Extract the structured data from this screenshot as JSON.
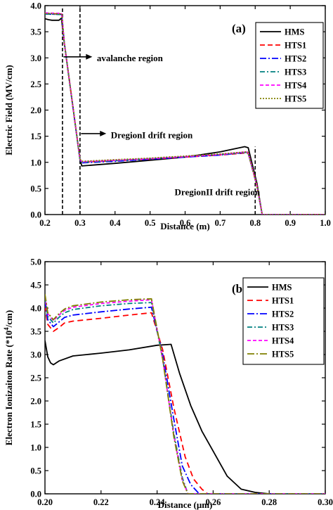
{
  "chart_data": [
    {
      "type": "line",
      "panel_label": "(a)",
      "xlabel": "Distance (m)",
      "ylabel": "Electric Field (MV/cm)",
      "xlim": [
        0.2,
        1.0
      ],
      "ylim": [
        0.0,
        4.0
      ],
      "xticks": [
        0.2,
        0.3,
        0.4,
        0.5,
        0.6,
        0.7,
        0.8,
        0.9,
        1.0
      ],
      "xtick_labels": [
        "0.2",
        "0.3",
        "0.4",
        "0.5",
        "0.6",
        "0.7",
        "0.8",
        "0.9",
        "1.0"
      ],
      "yticks": [
        0.0,
        0.5,
        1.0,
        1.5,
        2.0,
        2.5,
        3.0,
        3.5,
        4.0
      ],
      "ytick_labels": [
        "0.0",
        "0.5",
        "1.0",
        "1.5",
        "2.0",
        "2.5",
        "3.0",
        "3.5",
        "4.0"
      ],
      "legend_position": "top-right",
      "vlines": [
        0.25,
        0.3,
        0.8
      ],
      "annotations": [
        {
          "text": "avalanche region",
          "x": 0.34,
          "y": 3.0,
          "arrow_from": [
            0.253,
            3.02
          ],
          "arrow_to": [
            0.335,
            3.02
          ]
        },
        {
          "text": "DregionI drift region",
          "x": 0.38,
          "y": 1.52,
          "arrow_from": [
            0.303,
            1.55
          ],
          "arrow_to": [
            0.375,
            1.55
          ]
        },
        {
          "text": "DregionII drift region",
          "x": 0.57,
          "y": 0.43
        }
      ],
      "series": [
        {
          "name": "HMS",
          "color": "#000000",
          "dash": "solid",
          "x": [
            0.2,
            0.21,
            0.22,
            0.24,
            0.247,
            0.255,
            0.3,
            0.305,
            0.4,
            0.5,
            0.6,
            0.7,
            0.77,
            0.78,
            0.805,
            0.82,
            1.0
          ],
          "y": [
            3.75,
            3.73,
            3.72,
            3.72,
            3.76,
            3.3,
            1.05,
            0.93,
            0.98,
            1.04,
            1.1,
            1.2,
            1.3,
            1.28,
            0.6,
            0.0,
            0.0
          ]
        },
        {
          "name": "HTS1",
          "color": "#ff0000",
          "dash": "7,4",
          "x": [
            0.2,
            0.248,
            0.255,
            0.3,
            0.305,
            0.4,
            0.5,
            0.6,
            0.7,
            0.775,
            0.78,
            0.805,
            0.82,
            1.0
          ],
          "y": [
            3.85,
            3.84,
            3.3,
            1.05,
            1.0,
            1.03,
            1.06,
            1.1,
            1.14,
            1.18,
            1.17,
            0.55,
            0.0,
            0.0
          ]
        },
        {
          "name": "HTS2",
          "color": "#0000ff",
          "dash": "9,3,2,3",
          "x": [
            0.2,
            0.248,
            0.255,
            0.3,
            0.305,
            0.4,
            0.5,
            0.6,
            0.7,
            0.775,
            0.78,
            0.805,
            0.82,
            1.0
          ],
          "y": [
            3.84,
            3.83,
            3.3,
            1.04,
            0.99,
            1.02,
            1.06,
            1.1,
            1.14,
            1.19,
            1.18,
            0.55,
            0.0,
            0.0
          ]
        },
        {
          "name": "HTS3",
          "color": "#008080",
          "dash": "7,3,2,3",
          "x": [
            0.2,
            0.248,
            0.255,
            0.3,
            0.305,
            0.4,
            0.5,
            0.6,
            0.7,
            0.775,
            0.78,
            0.805,
            0.82,
            1.0
          ],
          "y": [
            3.84,
            3.83,
            3.3,
            1.05,
            1.0,
            1.03,
            1.07,
            1.11,
            1.15,
            1.19,
            1.18,
            0.55,
            0.0,
            0.0
          ]
        },
        {
          "name": "HTS4",
          "color": "#ff00ff",
          "dash": "5,3",
          "x": [
            0.2,
            0.248,
            0.255,
            0.3,
            0.305,
            0.4,
            0.5,
            0.6,
            0.7,
            0.775,
            0.78,
            0.805,
            0.82,
            1.0
          ],
          "y": [
            3.86,
            3.85,
            3.3,
            1.06,
            1.01,
            1.04,
            1.07,
            1.11,
            1.15,
            1.2,
            1.19,
            0.55,
            0.0,
            0.0
          ]
        },
        {
          "name": "HTS5",
          "color": "#808000",
          "dash": "2,2",
          "x": [
            0.2,
            0.248,
            0.255,
            0.3,
            0.305,
            0.4,
            0.5,
            0.6,
            0.7,
            0.775,
            0.78,
            0.805,
            0.82,
            1.0
          ],
          "y": [
            3.85,
            3.84,
            3.3,
            1.06,
            1.02,
            1.05,
            1.08,
            1.12,
            1.16,
            1.2,
            1.19,
            0.55,
            0.0,
            0.0
          ]
        }
      ]
    },
    {
      "type": "line",
      "panel_label": "(b)",
      "xlabel": "Distance (μm)",
      "ylabel": "Electron Ionizaiton Rate (*10⁴/cm)",
      "xlim": [
        0.2,
        0.3
      ],
      "ylim": [
        0.0,
        5.0
      ],
      "xticks": [
        0.2,
        0.22,
        0.24,
        0.26,
        0.28,
        0.3
      ],
      "xtick_labels": [
        "0.20",
        "0.22",
        "0.24",
        "0.26",
        "0.28",
        "0.30"
      ],
      "yticks": [
        0.0,
        0.5,
        1.0,
        1.5,
        2.0,
        2.5,
        3.0,
        3.5,
        4.0,
        4.5,
        5.0
      ],
      "ytick_labels": [
        "0.0",
        "0.5",
        "1.0",
        "1.5",
        "2.0",
        "2.5",
        "3.0",
        "3.5",
        "4.0",
        "4.5",
        "5.0"
      ],
      "legend_position": "top-right",
      "series": [
        {
          "name": "HMS",
          "color": "#000000",
          "dash": "solid",
          "x": [
            0.2,
            0.201,
            0.202,
            0.203,
            0.205,
            0.21,
            0.215,
            0.22,
            0.23,
            0.24,
            0.245,
            0.248,
            0.252,
            0.256,
            0.26,
            0.265,
            0.27,
            0.275,
            0.28,
            0.3
          ],
          "y": [
            3.3,
            2.95,
            2.82,
            2.78,
            2.86,
            2.97,
            3.0,
            3.03,
            3.1,
            3.2,
            3.22,
            2.6,
            1.9,
            1.35,
            0.92,
            0.38,
            0.1,
            0.03,
            0.0,
            0.0
          ]
        },
        {
          "name": "HTS1",
          "color": "#ff0000",
          "dash": "8,5",
          "x": [
            0.2,
            0.201,
            0.203,
            0.205,
            0.207,
            0.21,
            0.22,
            0.23,
            0.238,
            0.242,
            0.246,
            0.25,
            0.253,
            0.256,
            0.258,
            0.3
          ],
          "y": [
            4.05,
            3.65,
            3.5,
            3.58,
            3.68,
            3.72,
            3.78,
            3.85,
            3.9,
            3.1,
            1.85,
            0.8,
            0.32,
            0.1,
            0.0,
            0.0
          ]
        },
        {
          "name": "HTS2",
          "color": "#0000ff",
          "dash": "10,3,2,3",
          "x": [
            0.2,
            0.201,
            0.203,
            0.205,
            0.207,
            0.21,
            0.22,
            0.23,
            0.238,
            0.242,
            0.246,
            0.249,
            0.252,
            0.255,
            0.3
          ],
          "y": [
            4.15,
            3.75,
            3.6,
            3.7,
            3.8,
            3.85,
            3.92,
            3.98,
            4.02,
            3.0,
            1.6,
            0.6,
            0.2,
            0.0,
            0.0
          ]
        },
        {
          "name": "HTS3",
          "color": "#008080",
          "dash": "7,3,2,3",
          "x": [
            0.2,
            0.201,
            0.203,
            0.205,
            0.207,
            0.21,
            0.22,
            0.23,
            0.238,
            0.242,
            0.246,
            0.249,
            0.251,
            0.3
          ],
          "y": [
            4.2,
            3.82,
            3.68,
            3.8,
            3.9,
            3.97,
            4.05,
            4.1,
            4.12,
            2.9,
            1.3,
            0.35,
            0.0,
            0.0
          ]
        },
        {
          "name": "HTS4",
          "color": "#ff00ff",
          "dash": "5,3",
          "x": [
            0.2,
            0.201,
            0.203,
            0.205,
            0.207,
            0.21,
            0.22,
            0.23,
            0.238,
            0.242,
            0.246,
            0.249,
            0.251,
            0.3
          ],
          "y": [
            4.25,
            3.88,
            3.73,
            3.85,
            3.95,
            4.02,
            4.1,
            4.15,
            4.18,
            2.9,
            1.25,
            0.3,
            0.0,
            0.0
          ]
        },
        {
          "name": "HTS5",
          "color": "#808000",
          "dash": "10,3,2,3",
          "x": [
            0.2,
            0.201,
            0.203,
            0.205,
            0.207,
            0.21,
            0.22,
            0.23,
            0.238,
            0.242,
            0.246,
            0.249,
            0.251,
            0.3
          ],
          "y": [
            4.3,
            3.9,
            3.75,
            3.88,
            3.98,
            4.05,
            4.13,
            4.18,
            4.2,
            2.9,
            1.22,
            0.28,
            0.0,
            0.0
          ]
        }
      ]
    }
  ]
}
